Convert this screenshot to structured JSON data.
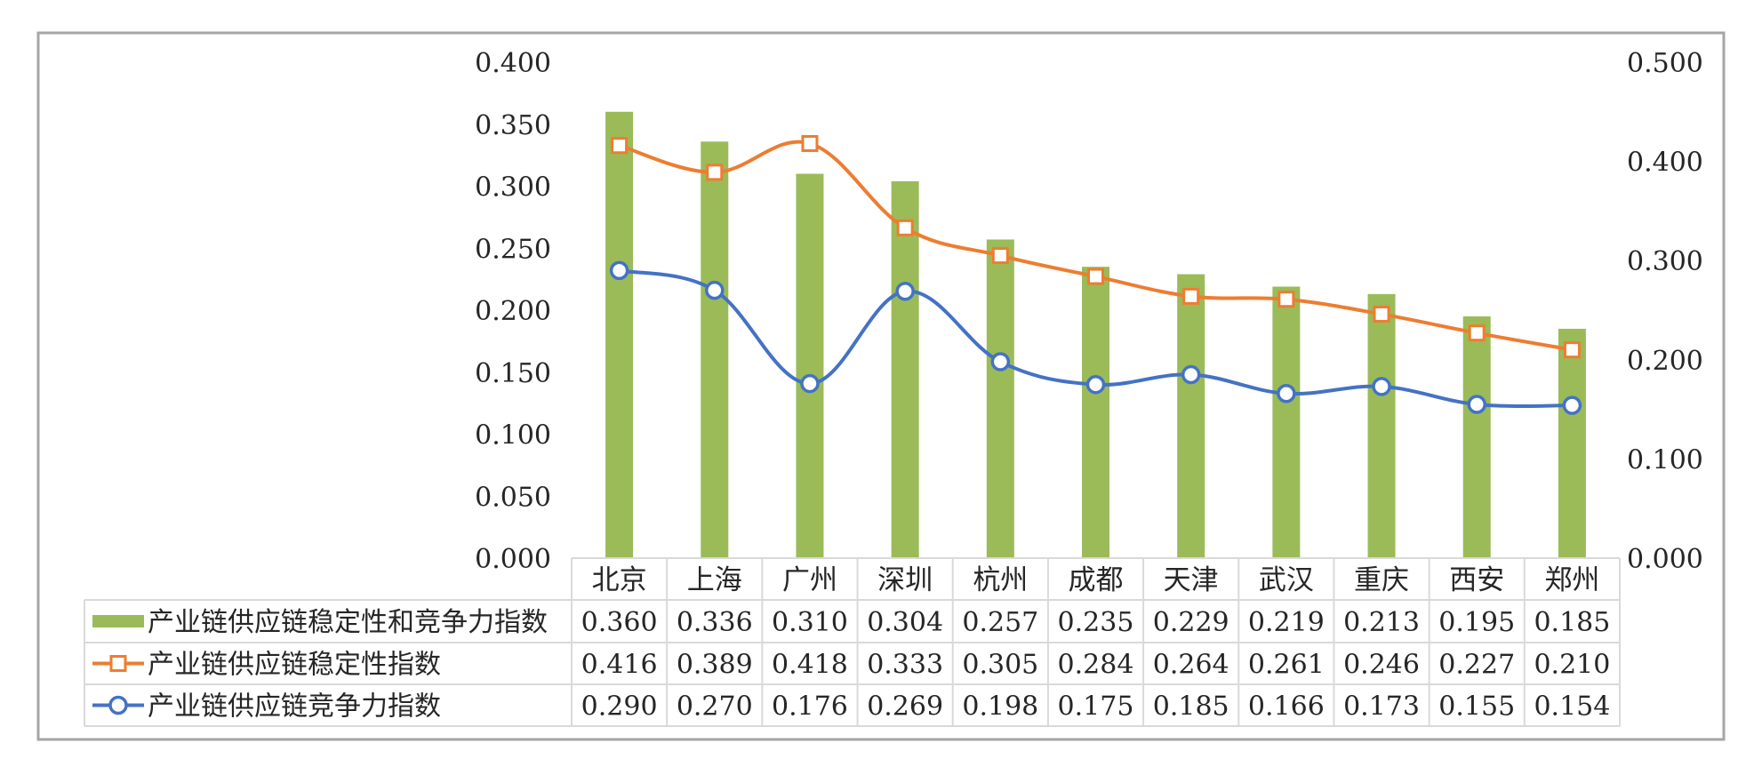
{
  "chart_data": {
    "type": "bar",
    "title": "",
    "categories": [
      "北京",
      "上海",
      "广州",
      "深圳",
      "杭州",
      "成都",
      "天津",
      "武汉",
      "重庆",
      "西安",
      "郑州"
    ],
    "left_axis": {
      "min": 0.0,
      "max": 0.4,
      "step": 0.05,
      "tick_labels": [
        "0.000",
        "0.050",
        "0.100",
        "0.150",
        "0.200",
        "0.250",
        "0.300",
        "0.350",
        "0.400"
      ]
    },
    "right_axis": {
      "min": 0.0,
      "max": 0.5,
      "step": 0.1,
      "tick_labels": [
        "0.000",
        "0.100",
        "0.200",
        "0.300",
        "0.400",
        "0.500"
      ]
    },
    "grid": false,
    "legend": "data-table-below",
    "series": [
      {
        "name": "产业链供应链稳定性和竞争力指数",
        "type": "bar",
        "axis": "left",
        "color": "#9bbb59",
        "values": [
          0.36,
          0.336,
          0.31,
          0.304,
          0.257,
          0.235,
          0.229,
          0.219,
          0.213,
          0.195,
          0.185
        ],
        "labels": [
          "0.360",
          "0.336",
          "0.310",
          "0.304",
          "0.257",
          "0.235",
          "0.229",
          "0.219",
          "0.213",
          "0.195",
          "0.185"
        ]
      },
      {
        "name": "产业链供应链稳定性指数",
        "type": "line",
        "marker": "square",
        "axis": "right",
        "color": "#ed7d31",
        "values": [
          0.416,
          0.389,
          0.418,
          0.333,
          0.305,
          0.284,
          0.264,
          0.261,
          0.246,
          0.227,
          0.21
        ],
        "labels": [
          "0.416",
          "0.389",
          "0.418",
          "0.333",
          "0.305",
          "0.284",
          "0.264",
          "0.261",
          "0.246",
          "0.227",
          "0.210"
        ]
      },
      {
        "name": "产业链供应链竞争力指数",
        "type": "line",
        "marker": "circle",
        "axis": "right",
        "color": "#4472c4",
        "values": [
          0.29,
          0.27,
          0.176,
          0.269,
          0.198,
          0.175,
          0.185,
          0.166,
          0.173,
          0.155,
          0.154
        ],
        "labels": [
          "0.290",
          "0.270",
          "0.176",
          "0.269",
          "0.198",
          "0.175",
          "0.185",
          "0.166",
          "0.173",
          "0.155",
          "0.154"
        ]
      }
    ]
  }
}
